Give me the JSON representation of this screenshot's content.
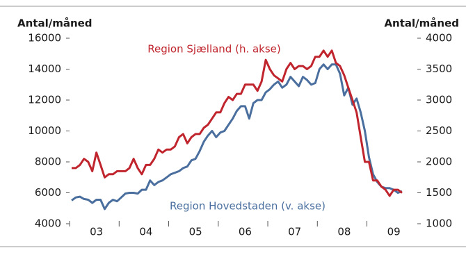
{
  "chart_data": {
    "type": "line",
    "y_label": "Antal/måned",
    "y2_label": "Antal/måned",
    "categories": [
      null,
      null,
      null,
      null,
      null,
      null,
      "03",
      null,
      null,
      null,
      null,
      null,
      null,
      null,
      null,
      null,
      null,
      null,
      "04",
      null,
      null,
      null,
      null,
      null,
      null,
      null,
      null,
      null,
      null,
      null,
      "05",
      null,
      null,
      null,
      null,
      null,
      null,
      null,
      null,
      null,
      null,
      null,
      "06",
      null,
      null,
      null,
      null,
      null,
      null,
      null,
      null,
      null,
      null,
      null,
      "07",
      null,
      null,
      null,
      null,
      null,
      null,
      null,
      null,
      null,
      null,
      null,
      "08",
      null,
      null,
      null,
      null,
      null,
      null,
      null,
      null,
      null,
      null,
      null,
      "09",
      null,
      null
    ],
    "series": [
      {
        "name": "Region Hovedstaden (v. akse)",
        "color": "#4a6f9e",
        "axis": "y",
        "values": [
          5500,
          5700,
          5750,
          5600,
          5550,
          5350,
          5550,
          5550,
          4950,
          5350,
          5550,
          5450,
          5700,
          5950,
          6000,
          6000,
          5950,
          6200,
          6200,
          6800,
          6500,
          6700,
          6800,
          7000,
          7200,
          7300,
          7400,
          7600,
          7700,
          8100,
          8200,
          8700,
          9300,
          9700,
          10000,
          9600,
          9900,
          10000,
          10400,
          10800,
          11300,
          11600,
          11600,
          10800,
          11800,
          12000,
          12000,
          12500,
          12700,
          13000,
          13200,
          12800,
          13000,
          13500,
          13200,
          12900,
          13500,
          13300,
          13000,
          13100,
          14000,
          14300,
          14000,
          14300,
          14300,
          13700,
          12300,
          12800,
          11700,
          12100,
          11200,
          10000,
          8300,
          7200,
          6700,
          6400,
          6300,
          6300,
          6200,
          6000,
          6100
        ]
      },
      {
        "name": "Region Sjælland (h. akse)",
        "color": "#c0252e",
        "axis": "y2",
        "values": [
          1900,
          1900,
          1950,
          2050,
          2000,
          1850,
          2150,
          1950,
          1750,
          1800,
          1800,
          1850,
          1850,
          1850,
          1900,
          2050,
          1900,
          1800,
          1950,
          1950,
          2050,
          2200,
          2150,
          2200,
          2200,
          2250,
          2400,
          2450,
          2300,
          2400,
          2450,
          2450,
          2550,
          2600,
          2700,
          2800,
          2800,
          2950,
          3050,
          3000,
          3100,
          3100,
          3250,
          3250,
          3250,
          3150,
          3300,
          3650,
          3500,
          3400,
          3350,
          3300,
          3500,
          3600,
          3500,
          3550,
          3550,
          3500,
          3550,
          3700,
          3700,
          3800,
          3700,
          3800,
          3600,
          3550,
          3400,
          3200,
          3000,
          2800,
          2400,
          2000,
          2000,
          1700,
          1700,
          1600,
          1550,
          1450,
          1550,
          1550,
          1500
        ]
      }
    ],
    "ylim": [
      4000,
      16000
    ],
    "yticks": [
      4000,
      6000,
      8000,
      10000,
      12000,
      14000,
      16000
    ],
    "y2lim": [
      1000,
      4000
    ],
    "y2ticks": [
      1000,
      1500,
      2000,
      2500,
      3000,
      3500,
      4000
    ]
  }
}
